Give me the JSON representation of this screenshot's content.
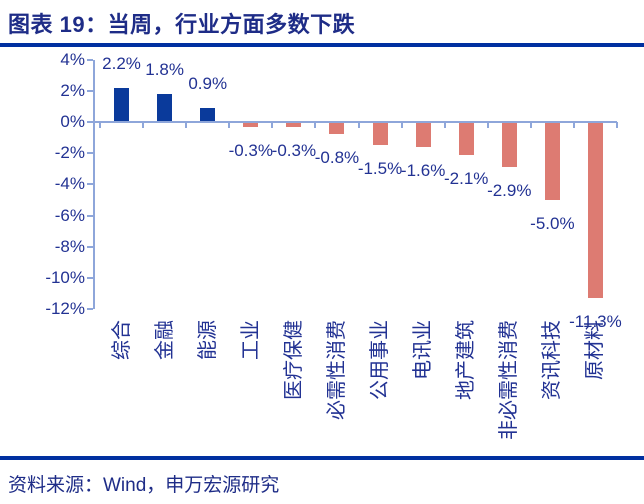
{
  "header": {
    "title": "图表 19：当周，行业方面多数下跌"
  },
  "footer": {
    "source": "资料来源：Wind，申万宏源研究"
  },
  "chart_data": {
    "type": "bar",
    "title": "当周，行业方面多数下跌",
    "categories": [
      "综合",
      "金融",
      "能源",
      "工业",
      "医疗保健",
      "必需性消费",
      "公用事业",
      "电讯业",
      "地产建筑",
      "非必需性消费",
      "资讯科技",
      "原材料"
    ],
    "values": [
      2.2,
      1.8,
      0.9,
      -0.3,
      -0.3,
      -0.8,
      -1.5,
      -1.6,
      -2.1,
      -2.9,
      -5.0,
      -11.3
    ],
    "labels": [
      "2.2%",
      "1.8%",
      "0.9%",
      "-0.3%",
      "-0.3%",
      "-0.8%",
      "-1.5%",
      "-1.6%",
      "-2.1%",
      "-2.9%",
      "-5.0%",
      "-11.3%"
    ],
    "xlabel": "",
    "ylabel": "",
    "ylim": [
      -12,
      4
    ],
    "yticks": [
      4,
      2,
      0,
      -2,
      -4,
      -6,
      -8,
      -10,
      -12
    ],
    "ytick_labels": [
      "4%",
      "2%",
      "0%",
      "-2%",
      "-4%",
      "-6%",
      "-8%",
      "-10%",
      "-12%"
    ],
    "grid": false,
    "legend": null,
    "label_position": "outside-end",
    "colors": {
      "positive_bar": "#0a3a9b",
      "negative_bar": "#dd7b72",
      "axis": "#8ea6da",
      "chart_text": "#223293",
      "title_text": "#1e2c87",
      "rule": "#0030a0"
    }
  }
}
